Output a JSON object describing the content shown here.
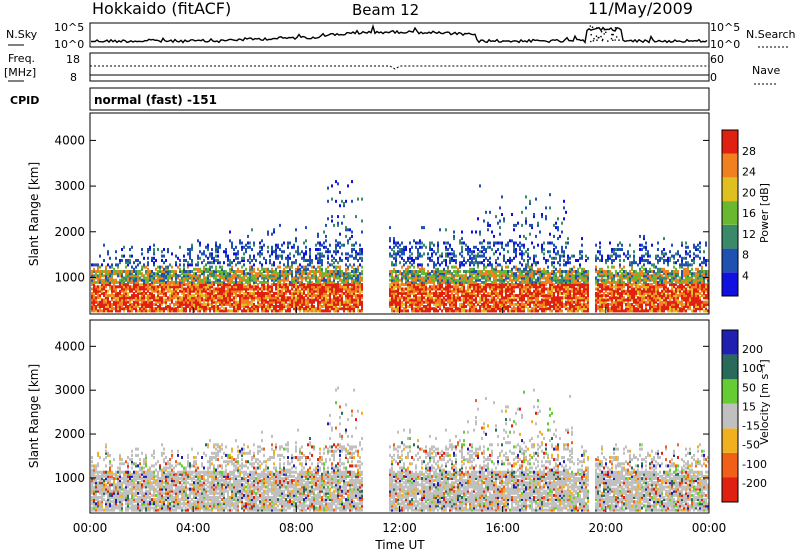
{
  "header": {
    "station": "Hokkaido (fitACF)",
    "beam": "Beam 12",
    "date": "11/May/2009"
  },
  "panels": {
    "noise": {
      "left_label": "N.Sky",
      "right_label": "N.Search",
      "left_ticks": [
        "10^5",
        "10^0"
      ],
      "right_ticks": [
        "10^5",
        "10^0"
      ]
    },
    "freq": {
      "left_label_top": "Freq.",
      "left_label_bottom": "[MHz]",
      "right_label": "Nave",
      "left_ticks": [
        "18",
        "8"
      ],
      "right_ticks": [
        "60",
        "0"
      ]
    },
    "cpid": {
      "label": "CPID",
      "text": "normal (fast) -151"
    }
  },
  "colors": {
    "power": [
      "#1010e0",
      "#2050b0",
      "#3a8a6a",
      "#6ab830",
      "#e0c020",
      "#f08020",
      "#e02010"
    ],
    "velocity": [
      "#e02010",
      "#f06018",
      "#f0b020",
      "#c0c0c0",
      "#66cc33",
      "#2a6a5a",
      "#2020b0"
    ]
  },
  "chart_data": [
    {
      "type": "heatmap",
      "name": "power",
      "ylabel": "Slant Range [km]",
      "yticks": [
        1000,
        2000,
        3000,
        4000
      ],
      "ylim": [
        200,
        4600
      ],
      "colorbar": {
        "label": "Power [dB]",
        "ticks": [
          "4",
          "8",
          "12",
          "16",
          "20",
          "24",
          "28"
        ],
        "range": [
          0,
          30
        ]
      }
    },
    {
      "type": "heatmap",
      "name": "velocity",
      "ylabel": "Slant Range [km]",
      "yticks": [
        1000,
        2000,
        3000,
        4000
      ],
      "ylim": [
        200,
        4600
      ],
      "xlabel": "Time UT",
      "xticks": [
        "00:00",
        "04:00",
        "08:00",
        "12:00",
        "16:00",
        "20:00",
        "00:00"
      ],
      "colorbar": {
        "label": "Velocity [m s⁻¹]",
        "ticks": [
          "200",
          "100",
          "50",
          "15",
          "-15",
          "-50",
          "-100",
          "-200"
        ],
        "range": [
          -250,
          250
        ]
      }
    }
  ]
}
